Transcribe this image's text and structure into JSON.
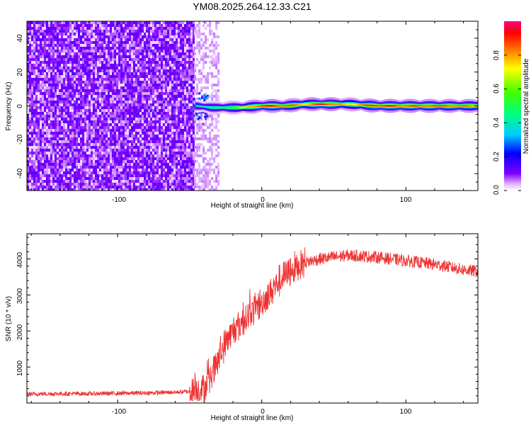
{
  "title": "YM08.2025.264.12.33.C21",
  "chart_data": [
    {
      "type": "heatmap",
      "xlabel": "Height of straight line (km)",
      "ylabel": "Frequency (Hz)",
      "xlim": [
        -163,
        150
      ],
      "ylim": [
        -50,
        50
      ],
      "xticks": [
        -100,
        0,
        100
      ],
      "yticks": [
        -40,
        -20,
        0,
        20,
        40
      ],
      "noise_region_x": [
        -163,
        -47
      ],
      "signal_ridge": [
        {
          "x": -46,
          "y": 0,
          "amplitude": 0.35
        },
        {
          "x": -35,
          "y": -1,
          "amplitude": 0.45
        },
        {
          "x": -20,
          "y": -1,
          "amplitude": 0.6
        },
        {
          "x": -15,
          "y": -1,
          "amplitude": 0.7
        },
        {
          "x": 0,
          "y": 0,
          "amplitude": 0.9
        },
        {
          "x": 15,
          "y": 0,
          "amplitude": 0.85
        },
        {
          "x": 30,
          "y": 1,
          "amplitude": 0.75
        },
        {
          "x": 42,
          "y": 1,
          "amplitude": 0.95
        },
        {
          "x": 60,
          "y": 1,
          "amplitude": 0.7
        },
        {
          "x": 80,
          "y": 0,
          "amplitude": 0.9
        },
        {
          "x": 120,
          "y": 0,
          "amplitude": 0.85
        },
        {
          "x": 150,
          "y": 0,
          "amplitude": 0.8
        }
      ],
      "colorbar": {
        "label": "Normalized spectral amplitude",
        "ticks": [
          0.0,
          0.2,
          0.4,
          0.6,
          0.8
        ],
        "tick_labels": [
          "0.0",
          "0.2",
          "0.4",
          "0.6",
          "0.8"
        ],
        "range": [
          0,
          1
        ]
      }
    },
    {
      "type": "line",
      "xlabel": "Height of straight line (km)",
      "ylabel": "SNR (10 * v/v)",
      "xlim": [
        -163,
        150
      ],
      "ylim": [
        0,
        4700
      ],
      "xticks": [
        -100,
        0,
        100
      ],
      "yticks": [
        1000,
        2000,
        3000,
        4000
      ],
      "color": "#ee3333",
      "series": [
        {
          "x": [
            -163,
            -140,
            -120,
            -100,
            -80,
            -60,
            -50,
            -45,
            -40,
            -35,
            -30,
            -25,
            -20,
            -15,
            -10,
            -5,
            0,
            5,
            10,
            15,
            20,
            25,
            30,
            40,
            50,
            60,
            70,
            80,
            90,
            100,
            110,
            120,
            130,
            140,
            150
          ],
          "values": [
            250,
            260,
            260,
            270,
            280,
            300,
            320,
            380,
            400,
            700,
            1200,
            1700,
            2000,
            2200,
            2400,
            2600,
            2800,
            3000,
            3300,
            3500,
            3700,
            3800,
            3900,
            4000,
            4050,
            4100,
            4080,
            4050,
            4000,
            3950,
            3900,
            3850,
            3780,
            3700,
            3650
          ]
        }
      ]
    }
  ]
}
